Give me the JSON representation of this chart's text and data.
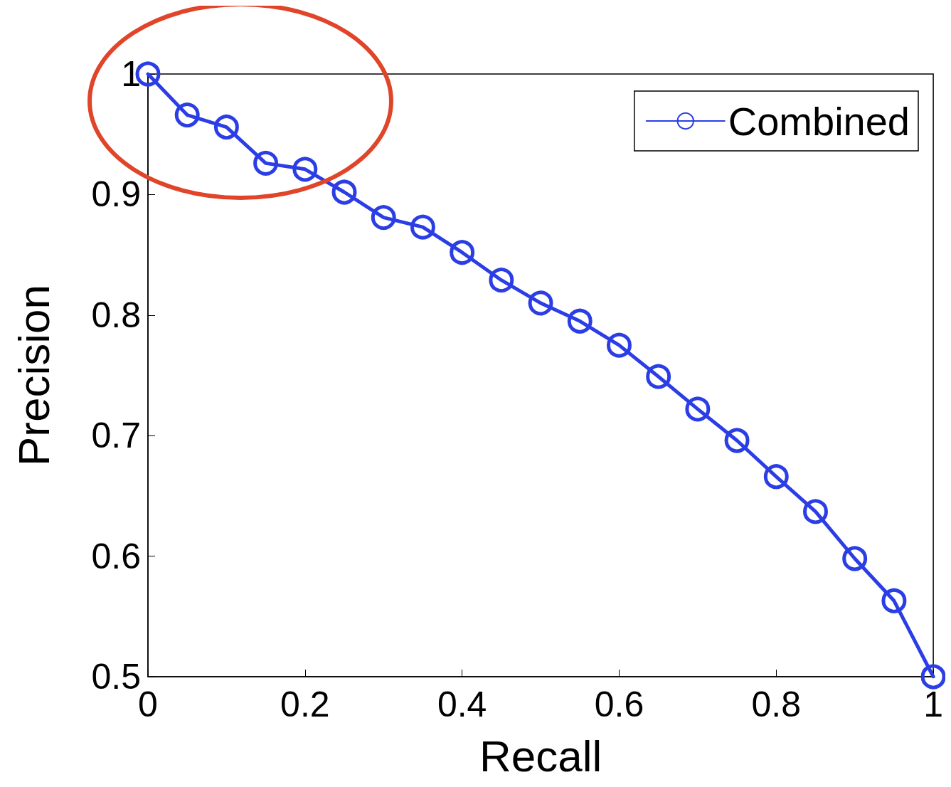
{
  "chart_data": {
    "type": "line",
    "xlabel": "Recall",
    "ylabel": "Precision",
    "x": [
      0,
      0.05,
      0.1,
      0.15,
      0.2,
      0.25,
      0.3,
      0.35,
      0.4,
      0.45,
      0.5,
      0.55,
      0.6,
      0.65,
      0.7,
      0.75,
      0.8,
      0.85,
      0.9,
      0.95,
      1
    ],
    "series": [
      {
        "name": "Combined",
        "color": "#2b3ee6",
        "values": [
          1.0,
          0.966,
          0.956,
          0.926,
          0.921,
          0.902,
          0.881,
          0.873,
          0.852,
          0.829,
          0.81,
          0.795,
          0.775,
          0.749,
          0.722,
          0.696,
          0.666,
          0.637,
          0.598,
          0.563,
          0.5
        ]
      }
    ],
    "xlim": [
      0,
      1
    ],
    "xticks": [
      0,
      0.2,
      0.4,
      0.6,
      0.8,
      1
    ],
    "ylim": [
      0.5,
      1
    ],
    "yticks": [
      0.5,
      0.6,
      0.7,
      0.8,
      0.9,
      1
    ],
    "grid": false,
    "legend": "top right",
    "marker": "circle",
    "line_style": "solid"
  }
}
